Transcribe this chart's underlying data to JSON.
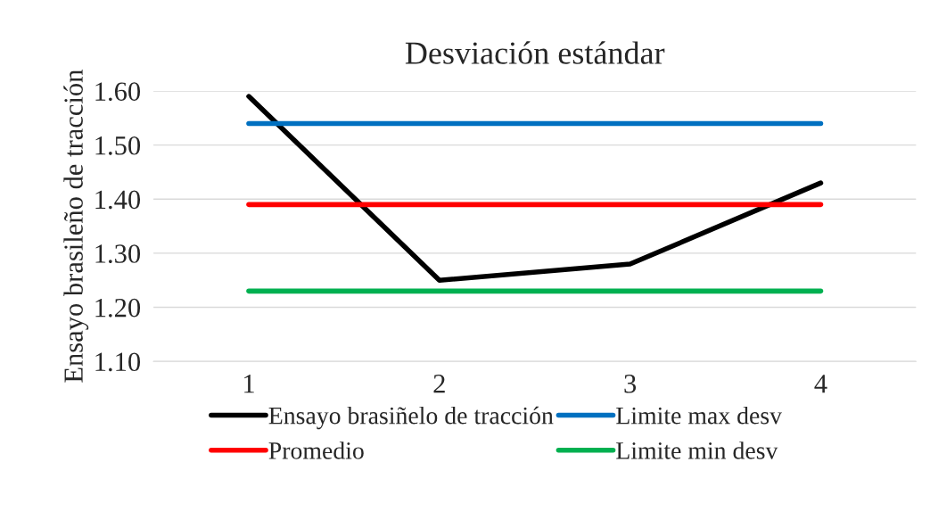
{
  "chart_data": {
    "type": "line",
    "title": "Desviación estándar",
    "ylabel": "Ensayo brasileño de tracción",
    "categories": [
      "1",
      "2",
      "3",
      "4"
    ],
    "series": [
      {
        "name": "Ensayo brasiñelo de tracción",
        "color": "#000000",
        "values": [
          1.59,
          1.25,
          1.28,
          1.43
        ]
      },
      {
        "name": "Promedio",
        "color": "#ff0000",
        "values": [
          1.39,
          1.39,
          1.39,
          1.39
        ]
      },
      {
        "name": "Limite max desv",
        "color": "#0070c0",
        "values": [
          1.54,
          1.54,
          1.54,
          1.54
        ]
      },
      {
        "name": "Limite min desv",
        "color": "#00b050",
        "values": [
          1.23,
          1.23,
          1.23,
          1.23
        ]
      }
    ],
    "ylim": [
      1.1,
      1.6
    ],
    "yticks": [
      {
        "value": 1.1,
        "label": "1.10"
      },
      {
        "value": 1.2,
        "label": "1.20"
      },
      {
        "value": 1.3,
        "label": "1.30"
      },
      {
        "value": 1.4,
        "label": "1.40"
      },
      {
        "value": 1.5,
        "label": "1.50"
      },
      {
        "value": 1.6,
        "label": "1.60"
      }
    ],
    "grid": "y",
    "legend": "bottom",
    "marker": "none",
    "line_style": "solid"
  }
}
